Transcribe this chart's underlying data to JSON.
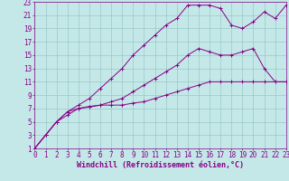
{
  "xlabel": "Windchill (Refroidissement éolien,°C)",
  "bg_color": "#c4e8e8",
  "grid_color": "#9ac8c8",
  "line_color": "#880088",
  "xlim": [
    0,
    23
  ],
  "ylim": [
    1,
    23
  ],
  "xticks": [
    0,
    1,
    2,
    3,
    4,
    5,
    6,
    7,
    8,
    9,
    10,
    11,
    12,
    13,
    14,
    15,
    16,
    17,
    18,
    19,
    20,
    21,
    22,
    23
  ],
  "yticks": [
    1,
    3,
    5,
    7,
    9,
    11,
    13,
    15,
    17,
    19,
    21,
    23
  ],
  "curve1_x": [
    0,
    1,
    2,
    3,
    4,
    5,
    6,
    7,
    8,
    9,
    10,
    11,
    12,
    13,
    14,
    15,
    16,
    17,
    18,
    19,
    20,
    21,
    22,
    23
  ],
  "curve1_y": [
    1,
    3,
    5,
    6,
    7,
    7.2,
    7.5,
    7.5,
    7.5,
    7.8,
    8,
    8.5,
    9,
    9.5,
    10,
    10.5,
    11,
    11,
    11,
    11,
    11,
    11,
    11,
    11
  ],
  "curve2_x": [
    0,
    1,
    2,
    3,
    4,
    5,
    6,
    7,
    8,
    9,
    10,
    11,
    12,
    13,
    14,
    15,
    16,
    17,
    18,
    19,
    20,
    21,
    22,
    23
  ],
  "curve2_y": [
    1,
    3,
    5,
    6.5,
    7,
    7.3,
    7.5,
    8,
    8.5,
    9.5,
    10.5,
    11.5,
    12.5,
    13.5,
    15,
    16,
    15.5,
    15,
    15,
    15.5,
    16,
    13,
    11,
    11
  ],
  "curve3_x": [
    0,
    1,
    2,
    3,
    4,
    5,
    6,
    7,
    8,
    9,
    10,
    11,
    12,
    13,
    14,
    15,
    16,
    17,
    18,
    19,
    20,
    21,
    22,
    23
  ],
  "curve3_y": [
    1,
    3,
    5,
    6.5,
    7.5,
    8.5,
    10,
    11.5,
    13,
    15,
    16.5,
    18,
    19.5,
    20.5,
    22.5,
    22.5,
    22.5,
    22,
    19.5,
    19,
    20,
    21.5,
    20.5,
    22.5
  ],
  "tick_fontsize": 5.5,
  "label_fontsize": 6,
  "font_color": "#880088"
}
